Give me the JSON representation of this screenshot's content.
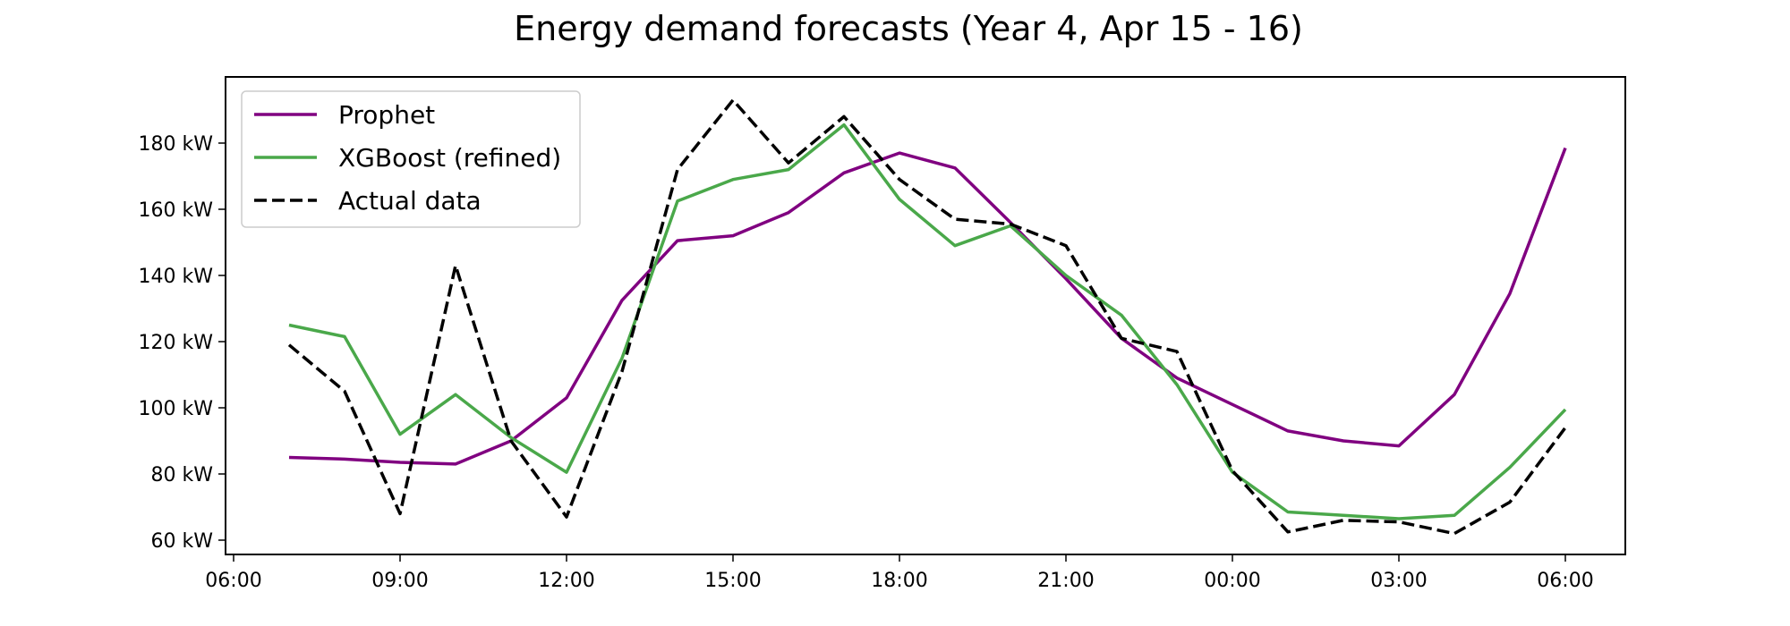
{
  "chart_data": {
    "type": "line",
    "title": "Energy demand forecasts (Year 4, Apr 15 - 16)",
    "xlabel": "",
    "ylabel": "",
    "x": [
      "07:00",
      "08:00",
      "09:00",
      "10:00",
      "11:00",
      "12:00",
      "13:00",
      "14:00",
      "15:00",
      "16:00",
      "17:00",
      "18:00",
      "19:00",
      "20:00",
      "21:00",
      "22:00",
      "23:00",
      "00:00",
      "01:00",
      "02:00",
      "03:00",
      "04:00",
      "05:00",
      "06:00"
    ],
    "x_tick_labels": [
      "06:00",
      "09:00",
      "12:00",
      "15:00",
      "18:00",
      "21:00",
      "00:00",
      "03:00",
      "06:00"
    ],
    "y_ticks": [
      60,
      80,
      100,
      120,
      140,
      160,
      180
    ],
    "y_tick_labels": [
      "60 kW",
      "80 kW",
      "100 kW",
      "120 kW",
      "140 kW",
      "160 kW",
      "180 kW"
    ],
    "ylim": [
      56,
      199
    ],
    "grid": false,
    "legend_position": "top-left",
    "series": [
      {
        "name": "Prophet",
        "color": "#800080",
        "dash": "solid",
        "values": [
          85,
          84.5,
          83.5,
          83,
          90,
          103,
          132.5,
          150.5,
          152,
          159,
          171,
          177,
          172.5,
          156,
          139,
          121,
          109,
          101,
          93,
          90,
          88.5,
          104,
          134.5,
          178.5
        ]
      },
      {
        "name": "XGBoost (refined)",
        "color": "#4aa84a",
        "dash": "solid",
        "values": [
          125,
          121.5,
          92,
          104,
          91,
          80.5,
          115,
          162.5,
          169,
          172,
          185.5,
          163,
          149,
          155,
          140,
          128,
          107,
          80.5,
          68.5,
          67.5,
          66.5,
          67.5,
          82,
          99.5
        ]
      },
      {
        "name": "Actual data",
        "color": "#000000",
        "dash": "dashed",
        "values": [
          119,
          105,
          68,
          143,
          90,
          67,
          111,
          172,
          193,
          174,
          188,
          169,
          157,
          155.5,
          149,
          121,
          117,
          81,
          62.5,
          66,
          65.5,
          62,
          71.5,
          94
        ]
      }
    ]
  }
}
